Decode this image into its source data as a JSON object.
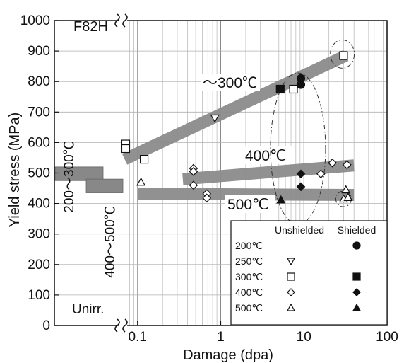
{
  "chart_data": {
    "type": "scatter",
    "material": "F82H",
    "xlabel": "Damage (dpa)",
    "ylabel": "Yield stress (MPa)",
    "x_scale": "log",
    "xlim": [
      0.01,
      100
    ],
    "ylim": [
      0,
      1000
    ],
    "x_ticks": [
      "0.1",
      "1",
      "10",
      "100"
    ],
    "y_ticks": [
      "0",
      "100",
      "200",
      "300",
      "400",
      "500",
      "600",
      "700",
      "800",
      "900",
      "1000"
    ],
    "unirradiated_label": "Unirr.",
    "unirradiated_bands": [
      {
        "label": "200〜300℃",
        "y_range": [
          475,
          520
        ]
      },
      {
        "label": "400〜500℃",
        "y_range": [
          435,
          480
        ]
      }
    ],
    "trend_bands": [
      {
        "label": "〜300℃",
        "x_start": 0.07,
        "y_start": 545,
        "x_end": 32,
        "y_end": 885,
        "color": "#8c8c8c"
      },
      {
        "label": "400℃",
        "x_start": 0.35,
        "y_start": 480,
        "x_end": 40,
        "y_end": 525,
        "color": "#8c8c8c"
      },
      {
        "label": "500℃",
        "x_start": 0.1,
        "y_start": 432,
        "x_end": 40,
        "y_end": 428,
        "color": "#8c8c8c"
      }
    ],
    "legend": {
      "position": "bottom-right",
      "header_unshielded": "Unshielded",
      "header_shielded": "Shielded",
      "entries": [
        "200℃",
        "250℃",
        "300℃",
        "400℃",
        "500℃"
      ]
    },
    "series": [
      {
        "name": "200℃",
        "shielding": "Shielded",
        "marker": "circle-filled",
        "points": [
          {
            "x": 9.2,
            "y": 810
          },
          {
            "x": 9.2,
            "y": 790
          }
        ]
      },
      {
        "name": "250℃",
        "shielding": "Unshielded",
        "marker": "triangle-down-open",
        "points": [
          {
            "x": 0.85,
            "y": 680
          }
        ]
      },
      {
        "name": "300℃",
        "shielding": "Unshielded",
        "marker": "square-open",
        "points": [
          {
            "x": 0.072,
            "y": 595
          },
          {
            "x": 0.072,
            "y": 580
          },
          {
            "x": 0.12,
            "y": 545
          },
          {
            "x": 7.5,
            "y": 775
          },
          {
            "x": 30,
            "y": 885
          }
        ]
      },
      {
        "name": "300℃",
        "shielding": "Shielded",
        "marker": "square-filled",
        "points": [
          {
            "x": 5.2,
            "y": 775
          }
        ]
      },
      {
        "name": "400℃",
        "shielding": "Unshielded",
        "marker": "diamond-open",
        "points": [
          {
            "x": 0.47,
            "y": 515
          },
          {
            "x": 0.47,
            "y": 505
          },
          {
            "x": 0.47,
            "y": 460
          },
          {
            "x": 0.68,
            "y": 432
          },
          {
            "x": 0.68,
            "y": 418
          },
          {
            "x": 16,
            "y": 497
          },
          {
            "x": 22,
            "y": 533
          },
          {
            "x": 33,
            "y": 527
          }
        ]
      },
      {
        "name": "400℃",
        "shielding": "Shielded",
        "marker": "diamond-filled",
        "points": [
          {
            "x": 9.2,
            "y": 497
          },
          {
            "x": 9.2,
            "y": 455
          }
        ]
      },
      {
        "name": "500℃",
        "shielding": "Unshielded",
        "marker": "triangle-up-open",
        "points": [
          {
            "x": 0.11,
            "y": 470
          },
          {
            "x": 30,
            "y": 415
          },
          {
            "x": 32,
            "y": 445
          },
          {
            "x": 34,
            "y": 420
          }
        ]
      },
      {
        "name": "500℃",
        "shielding": "Shielded",
        "marker": "triangle-up-filled",
        "points": [
          {
            "x": 5.3,
            "y": 412
          }
        ]
      }
    ],
    "highlight_ellipses": [
      {
        "cx": 8.5,
        "cy": 580,
        "note": "dash-dot"
      },
      {
        "cx": 29,
        "cy": 890,
        "note": "dash-dot"
      },
      {
        "cx": 30,
        "cy": 415,
        "note": "dash-dot"
      }
    ],
    "grid": true
  }
}
